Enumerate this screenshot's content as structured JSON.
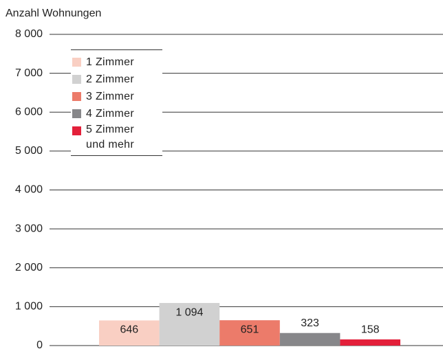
{
  "chart_data": {
    "type": "bar",
    "y_axis_label": "Anzahl Wohnungen",
    "categories": [
      "1 Zimmer",
      "2 Zimmer",
      "3 Zimmer",
      "4 Zimmer",
      "5 Zimmer und mehr"
    ],
    "values": [
      646,
      1094,
      651,
      323,
      158
    ],
    "value_labels": [
      "646",
      "1 094",
      "651",
      "323",
      "158"
    ],
    "colors": [
      "#f9cfc3",
      "#d1d1d1",
      "#ec7b6a",
      "#87878a",
      "#e3203a"
    ],
    "ylim": [
      0,
      8000
    ],
    "yticks": [
      0,
      {
        "value": 1000,
        "label": "1 000"
      },
      {
        "value": 2000,
        "label": "2 000"
      },
      {
        "value": 3000,
        "label": "3 000"
      },
      {
        "value": 4000,
        "label": "4 000"
      },
      {
        "value": 5000,
        "label": "5 000"
      },
      {
        "value": 6000,
        "label": "6 000"
      },
      {
        "value": 7000,
        "label": "7 000"
      },
      {
        "value": 8000,
        "label": "8 000"
      }
    ],
    "grid": true
  }
}
